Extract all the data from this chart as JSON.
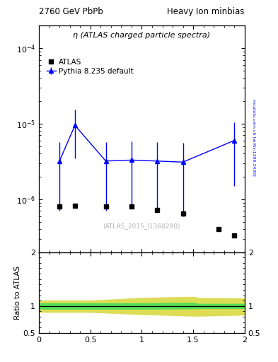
{
  "title_left": "2760 GeV PbPb",
  "title_right": "Heavy Ion minbias",
  "main_label": "η (ATLAS charged particle spectra)",
  "watermark": "(ATLAS_2015_I1360290)",
  "arxiv_label": "mcplots.cern.ch [arXiv:1306.3436]",
  "ylabel_ratio": "Ratio to ATLAS",
  "xlim": [
    0,
    2
  ],
  "ylim_main": [
    2e-07,
    0.0002
  ],
  "ylim_ratio": [
    0.5,
    2
  ],
  "atlas_x": [
    0.2,
    0.35,
    0.65,
    0.9,
    1.15,
    1.4,
    1.75,
    1.9
  ],
  "atlas_y": [
    8e-07,
    8.2e-07,
    8e-07,
    8e-07,
    7.2e-07,
    6.5e-07,
    4e-07,
    3.3e-07
  ],
  "pythia_x": [
    0.2,
    0.35,
    0.65,
    0.9,
    1.15,
    1.4,
    1.9
  ],
  "pythia_y": [
    3.2e-06,
    9.5e-06,
    3.2e-06,
    3.3e-06,
    3.2e-06,
    3.1e-06,
    6e-06
  ],
  "pythia_yerr_lo": [
    2.5e-06,
    6e-06,
    2.5e-06,
    2.5e-06,
    2.5e-06,
    2.5e-06,
    4.5e-06
  ],
  "pythia_yerr_hi": [
    2.5e-06,
    6e-06,
    2.5e-06,
    2.5e-06,
    2.5e-06,
    2.5e-06,
    4.5e-06
  ],
  "ratio_x": [
    0.0,
    0.5,
    1.0,
    1.5,
    1.55,
    2.0
  ],
  "ratio_green_lo": [
    0.95,
    0.95,
    0.95,
    0.955,
    0.96,
    0.96
  ],
  "ratio_green_hi": [
    1.05,
    1.05,
    1.05,
    1.06,
    1.04,
    1.04
  ],
  "ratio_yellow_lo": [
    0.89,
    0.89,
    0.85,
    0.82,
    0.82,
    0.84
  ],
  "ratio_yellow_hi": [
    1.1,
    1.1,
    1.15,
    1.17,
    1.15,
    1.14
  ],
  "atlas_color": "black",
  "pythia_color": "blue",
  "green_color": "#55dd55",
  "yellow_color": "#dddd55"
}
